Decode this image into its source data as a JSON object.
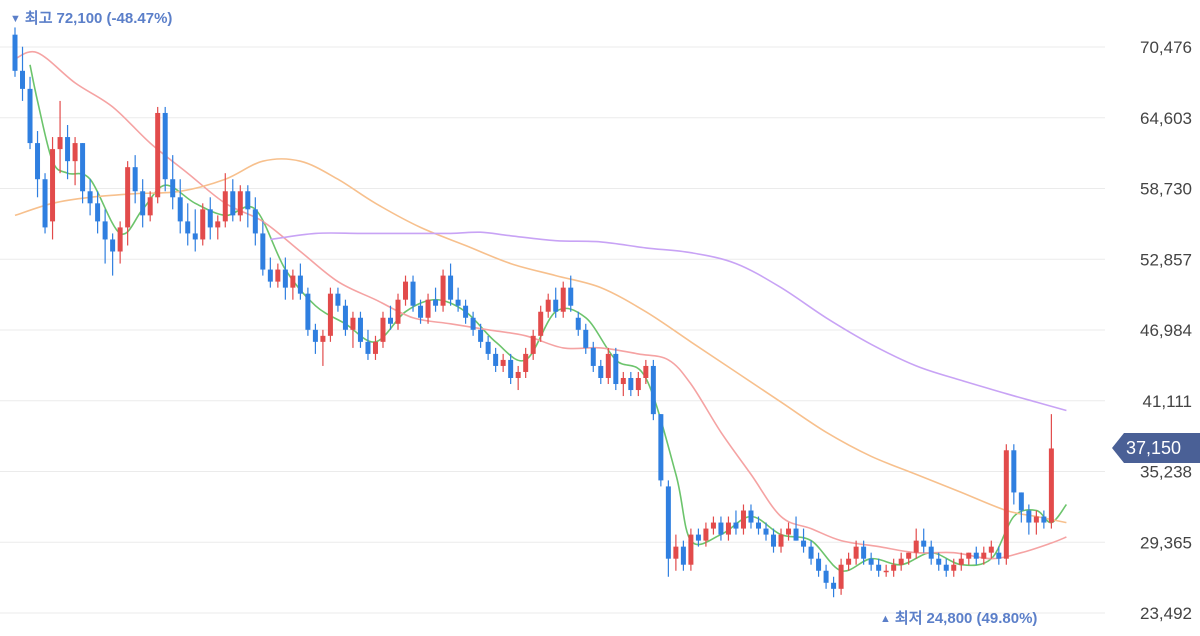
{
  "colors": {
    "up": "#e24b4b",
    "down": "#2f7fe0",
    "ma5": "#6cc46c",
    "ma20": "#f5a3a3",
    "ma60": "#f7c08d",
    "ma120": "#c8a3f5",
    "grid": "#ebebeb",
    "annotation": "#5b7fc9",
    "price_tag": "#4a6096"
  },
  "annotations": {
    "high": {
      "icon": "down-triangle-icon",
      "label": "최고",
      "value": "72,100 (-48.47%)"
    },
    "low": {
      "icon": "up-triangle-icon",
      "label": "최저",
      "value": "24,800 (49.80%)"
    }
  },
  "current_price": {
    "label": "37,150",
    "value": 37150
  },
  "chart_data": {
    "type": "candlestick",
    "y_ticks": [
      "70,476",
      "64,603",
      "58,730",
      "52,857",
      "46,984",
      "41,111",
      "35,238",
      "29,365",
      "23,492"
    ],
    "ylim": [
      23000,
      72300
    ],
    "grid": true,
    "high": 72100,
    "low": 24800,
    "candles": [
      [
        71500,
        72100,
        68000,
        68500
      ],
      [
        68500,
        70500,
        66000,
        67000
      ],
      [
        67000,
        68000,
        62000,
        62500
      ],
      [
        62500,
        63500,
        58000,
        59500
      ],
      [
        59500,
        60000,
        55000,
        55500
      ],
      [
        56000,
        63000,
        54500,
        62000
      ],
      [
        62000,
        66000,
        60000,
        63000
      ],
      [
        63000,
        64000,
        59500,
        61000
      ],
      [
        61000,
        63000,
        59000,
        62500
      ],
      [
        62500,
        62500,
        57500,
        58500
      ],
      [
        58500,
        59500,
        56500,
        57500
      ],
      [
        57500,
        58500,
        55000,
        56000
      ],
      [
        56000,
        57000,
        52500,
        54500
      ],
      [
        54500,
        55000,
        51500,
        53500
      ],
      [
        53500,
        56000,
        52500,
        55500
      ],
      [
        55500,
        61000,
        54000,
        60500
      ],
      [
        60500,
        61500,
        57500,
        58500
      ],
      [
        58500,
        59500,
        55500,
        56500
      ],
      [
        56500,
        58500,
        56000,
        58000
      ],
      [
        58000,
        65500,
        57500,
        65000
      ],
      [
        65000,
        65500,
        58500,
        59500
      ],
      [
        59500,
        61500,
        57000,
        58000
      ],
      [
        58000,
        59500,
        55000,
        56000
      ],
      [
        56000,
        57500,
        54000,
        55000
      ],
      [
        55000,
        57000,
        53500,
        54500
      ],
      [
        54500,
        57500,
        54000,
        57000
      ],
      [
        57000,
        58000,
        54500,
        55500
      ],
      [
        55500,
        56500,
        54500,
        56000
      ],
      [
        56000,
        60000,
        55500,
        58500
      ],
      [
        58500,
        59500,
        56000,
        56500
      ],
      [
        56500,
        59000,
        56000,
        58500
      ],
      [
        58500,
        59000,
        55500,
        57000
      ],
      [
        57000,
        58000,
        54000,
        55000
      ],
      [
        55000,
        56000,
        51500,
        52000
      ],
      [
        52000,
        53000,
        50500,
        51000
      ],
      [
        51000,
        52500,
        50500,
        52000
      ],
      [
        52000,
        53000,
        49500,
        50500
      ],
      [
        50500,
        52000,
        49500,
        51500
      ],
      [
        51500,
        52500,
        49500,
        50000
      ],
      [
        50000,
        50500,
        46500,
        47000
      ],
      [
        47000,
        47500,
        45000,
        46000
      ],
      [
        46000,
        47000,
        44000,
        46500
      ],
      [
        46500,
        50500,
        46000,
        50000
      ],
      [
        50000,
        50500,
        48500,
        49000
      ],
      [
        49000,
        49500,
        46500,
        47000
      ],
      [
        47000,
        48500,
        45500,
        48000
      ],
      [
        48000,
        48500,
        45500,
        46000
      ],
      [
        46000,
        47000,
        44500,
        45000
      ],
      [
        45000,
        46500,
        44500,
        46000
      ],
      [
        46000,
        48500,
        45500,
        48000
      ],
      [
        48000,
        49000,
        47000,
        47500
      ],
      [
        47500,
        50000,
        47000,
        49500
      ],
      [
        49500,
        51500,
        49000,
        51000
      ],
      [
        51000,
        51500,
        48500,
        49000
      ],
      [
        49000,
        49500,
        47500,
        48000
      ],
      [
        48000,
        50000,
        47500,
        49500
      ],
      [
        49500,
        50500,
        48500,
        49000
      ],
      [
        49000,
        52000,
        48500,
        51500
      ],
      [
        51500,
        52500,
        49000,
        49500
      ],
      [
        49500,
        50500,
        48500,
        49000
      ],
      [
        49000,
        49500,
        47500,
        48000
      ],
      [
        48000,
        48500,
        46500,
        47000
      ],
      [
        47000,
        47500,
        45500,
        46000
      ],
      [
        46000,
        46500,
        44500,
        45000
      ],
      [
        45000,
        45500,
        43500,
        44000
      ],
      [
        44000,
        45000,
        43500,
        44500
      ],
      [
        44500,
        45000,
        42500,
        43000
      ],
      [
        43000,
        44000,
        42000,
        43500
      ],
      [
        43500,
        45500,
        43000,
        45000
      ],
      [
        45000,
        47000,
        44500,
        46500
      ],
      [
        46500,
        49000,
        46000,
        48500
      ],
      [
        48500,
        50000,
        48000,
        49500
      ],
      [
        49500,
        50500,
        48000,
        48500
      ],
      [
        48500,
        51000,
        48000,
        50500
      ],
      [
        50500,
        51500,
        48500,
        49000
      ],
      [
        48000,
        48500,
        46500,
        47000
      ],
      [
        47000,
        47500,
        45000,
        45500
      ],
      [
        45500,
        46000,
        43500,
        44000
      ],
      [
        44000,
        44500,
        42500,
        43000
      ],
      [
        43000,
        45500,
        42500,
        45000
      ],
      [
        45000,
        45500,
        42000,
        42500
      ],
      [
        42500,
        43500,
        41500,
        43000
      ],
      [
        43000,
        43500,
        41500,
        42000
      ],
      [
        42000,
        43500,
        41500,
        43000
      ],
      [
        43000,
        44500,
        42500,
        44000
      ],
      [
        44000,
        44500,
        39500,
        40000
      ],
      [
        40000,
        40000,
        34000,
        34500
      ],
      [
        34000,
        34500,
        26500,
        28000
      ],
      [
        28000,
        30000,
        27000,
        29000
      ],
      [
        29000,
        29500,
        27000,
        27500
      ],
      [
        27500,
        30500,
        27000,
        30000
      ],
      [
        30000,
        30500,
        29000,
        29500
      ],
      [
        29500,
        31000,
        29000,
        30500
      ],
      [
        30500,
        31500,
        30000,
        31000
      ],
      [
        31000,
        31500,
        29500,
        30000
      ],
      [
        30000,
        31500,
        29500,
        31000
      ],
      [
        31000,
        32000,
        30000,
        30500
      ],
      [
        30500,
        32500,
        30000,
        32000
      ],
      [
        32000,
        32500,
        30500,
        31000
      ],
      [
        31000,
        31500,
        30000,
        30500
      ],
      [
        30500,
        31000,
        29500,
        30000
      ],
      [
        30000,
        30500,
        28500,
        29000
      ],
      [
        29000,
        30500,
        28500,
        30000
      ],
      [
        30000,
        31000,
        29500,
        30500
      ],
      [
        30500,
        31500,
        29500,
        29500
      ],
      [
        29500,
        30500,
        28500,
        29000
      ],
      [
        29000,
        29500,
        27500,
        28000
      ],
      [
        28000,
        28500,
        26500,
        27000
      ],
      [
        27000,
        27500,
        25500,
        26000
      ],
      [
        26000,
        26500,
        24800,
        25500
      ],
      [
        25500,
        28000,
        25000,
        27500
      ],
      [
        27500,
        28500,
        27000,
        28000
      ],
      [
        28000,
        29500,
        27500,
        29000
      ],
      [
        29000,
        29500,
        27500,
        28000
      ],
      [
        28000,
        28500,
        27000,
        27500
      ],
      [
        27500,
        28000,
        26500,
        27000
      ],
      [
        27000,
        27500,
        26500,
        27000
      ],
      [
        27000,
        28000,
        26500,
        27500
      ],
      [
        27500,
        28500,
        27000,
        28000
      ],
      [
        28000,
        28500,
        27500,
        28500
      ],
      [
        28500,
        30500,
        28000,
        29500
      ],
      [
        29500,
        30500,
        28500,
        29000
      ],
      [
        29000,
        29500,
        27500,
        28000
      ],
      [
        28000,
        28500,
        27000,
        27500
      ],
      [
        27500,
        28000,
        26500,
        27000
      ],
      [
        27000,
        28000,
        26500,
        27500
      ],
      [
        27500,
        28500,
        27000,
        28000
      ],
      [
        28000,
        28500,
        27500,
        28500
      ],
      [
        28500,
        29000,
        27500,
        28000
      ],
      [
        28000,
        29000,
        27500,
        28500
      ],
      [
        28500,
        29500,
        28000,
        29000
      ],
      [
        28500,
        29000,
        27500,
        28000
      ],
      [
        28000,
        37500,
        27500,
        37000
      ],
      [
        37000,
        37500,
        32500,
        33500
      ],
      [
        33500,
        33500,
        31000,
        32000
      ],
      [
        32000,
        32500,
        30000,
        31000
      ],
      [
        31000,
        32000,
        30000,
        31500
      ],
      [
        31500,
        32000,
        30500,
        31000
      ],
      [
        31000,
        40000,
        30500,
        37150
      ]
    ],
    "ma_lines": [
      {
        "name": "MA5",
        "color": "#6cc46c",
        "start_index": 2,
        "points": [
          [
            2,
            69000
          ],
          [
            3,
            66000
          ],
          [
            5,
            61000
          ],
          [
            7,
            60000
          ],
          [
            10,
            59500
          ],
          [
            14,
            55000
          ],
          [
            17,
            57000
          ],
          [
            20,
            59000
          ],
          [
            24,
            57500
          ],
          [
            28,
            56500
          ],
          [
            32,
            57000
          ],
          [
            36,
            52000
          ],
          [
            40,
            49000
          ],
          [
            44,
            47500
          ],
          [
            48,
            46000
          ],
          [
            52,
            48500
          ],
          [
            56,
            49500
          ],
          [
            60,
            48500
          ],
          [
            64,
            46000
          ],
          [
            68,
            44500
          ],
          [
            72,
            48500
          ],
          [
            76,
            48000
          ],
          [
            80,
            44500
          ],
          [
            84,
            43000
          ],
          [
            88,
            35000
          ],
          [
            90,
            29500
          ],
          [
            94,
            30000
          ],
          [
            98,
            31500
          ],
          [
            102,
            30000
          ],
          [
            106,
            29500
          ],
          [
            110,
            27000
          ],
          [
            114,
            28000
          ],
          [
            118,
            27500
          ],
          [
            122,
            28500
          ],
          [
            126,
            27500
          ],
          [
            130,
            28000
          ],
          [
            133,
            31500
          ],
          [
            136,
            32000
          ],
          [
            138,
            31000
          ],
          [
            140,
            32500
          ]
        ]
      },
      {
        "name": "MA20",
        "color": "#f5a3a3",
        "start_index": 0,
        "points": [
          [
            0,
            69500
          ],
          [
            3,
            70000
          ],
          [
            8,
            67500
          ],
          [
            13,
            65500
          ],
          [
            18,
            62500
          ],
          [
            23,
            60000
          ],
          [
            28,
            57500
          ],
          [
            33,
            56000
          ],
          [
            38,
            53500
          ],
          [
            43,
            51000
          ],
          [
            48,
            49500
          ],
          [
            53,
            48000
          ],
          [
            58,
            47500
          ],
          [
            63,
            47000
          ],
          [
            68,
            46500
          ],
          [
            73,
            45500
          ],
          [
            78,
            45500
          ],
          [
            83,
            45000
          ],
          [
            87,
            44500
          ],
          [
            90,
            42500
          ],
          [
            94,
            38500
          ],
          [
            98,
            35000
          ],
          [
            102,
            31500
          ],
          [
            106,
            30500
          ],
          [
            110,
            29500
          ],
          [
            115,
            29000
          ],
          [
            120,
            28500
          ],
          [
            125,
            28500
          ],
          [
            130,
            28000
          ],
          [
            134,
            28500
          ],
          [
            138,
            29300
          ],
          [
            140,
            29800
          ]
        ]
      },
      {
        "name": "MA60",
        "color": "#f7c08d",
        "start_index": 0,
        "points": [
          [
            0,
            56500
          ],
          [
            5,
            57500
          ],
          [
            10,
            58000
          ],
          [
            16,
            58300
          ],
          [
            22,
            58500
          ],
          [
            28,
            59500
          ],
          [
            33,
            61000
          ],
          [
            38,
            61000
          ],
          [
            43,
            59500
          ],
          [
            48,
            57500
          ],
          [
            54,
            55500
          ],
          [
            60,
            54000
          ],
          [
            66,
            52500
          ],
          [
            72,
            51500
          ],
          [
            78,
            50500
          ],
          [
            84,
            48500
          ],
          [
            90,
            46000
          ],
          [
            96,
            43500
          ],
          [
            102,
            41000
          ],
          [
            108,
            38500
          ],
          [
            114,
            36500
          ],
          [
            120,
            35000
          ],
          [
            126,
            33500
          ],
          [
            132,
            32000
          ],
          [
            136,
            31500
          ],
          [
            140,
            31000
          ]
        ]
      },
      {
        "name": "MA120",
        "color": "#c8a3f5",
        "start_index": 34,
        "points": [
          [
            34,
            54500
          ],
          [
            40,
            55000
          ],
          [
            46,
            55000
          ],
          [
            52,
            55000
          ],
          [
            58,
            55000
          ],
          [
            62,
            55100
          ],
          [
            66,
            54800
          ],
          [
            72,
            54400
          ],
          [
            78,
            54300
          ],
          [
            84,
            53800
          ],
          [
            90,
            53400
          ],
          [
            96,
            52500
          ],
          [
            102,
            50500
          ],
          [
            108,
            48000
          ],
          [
            114,
            45800
          ],
          [
            120,
            44000
          ],
          [
            126,
            42800
          ],
          [
            132,
            41700
          ],
          [
            136,
            41000
          ],
          [
            140,
            40300
          ]
        ]
      }
    ]
  }
}
